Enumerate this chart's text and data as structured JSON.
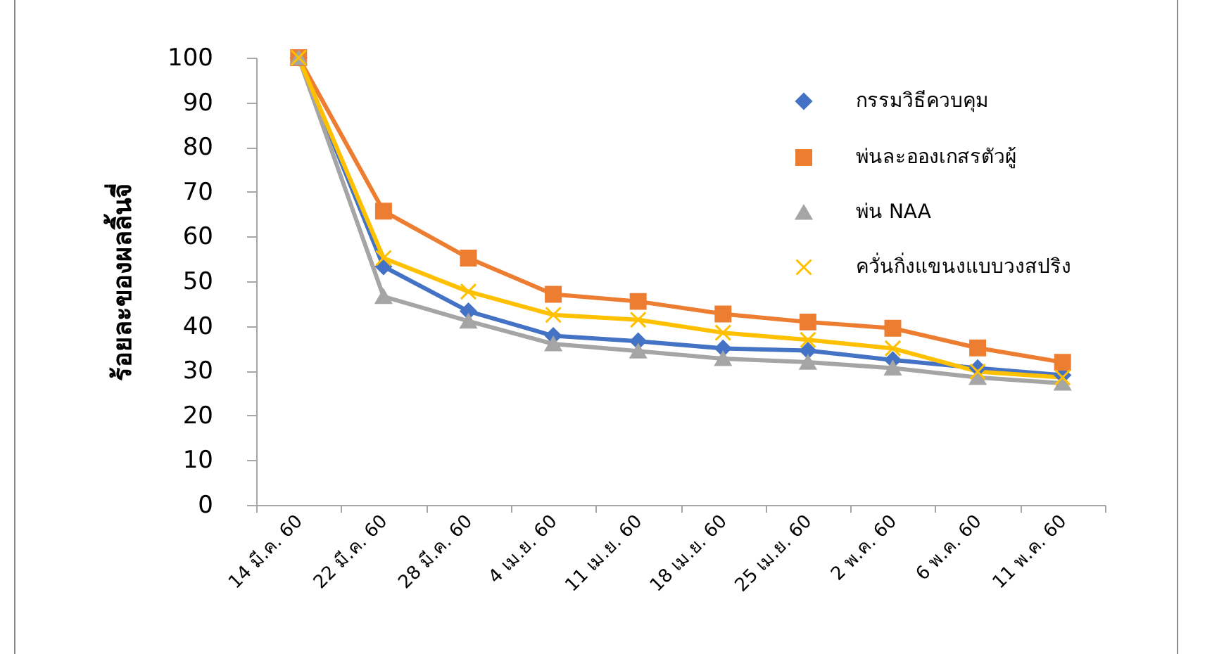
{
  "chart_data": {
    "type": "line",
    "ylabel": "ร้อยละของผลลิ้นจี่",
    "categories": [
      "14 มี.ค. 60",
      "22 มี.ค. 60",
      "28 มี.ค. 60",
      "4 เม.ย. 60",
      "11 เม.ย. 60",
      "18 เม.ย. 60",
      "25 เม.ย. 60",
      "2 พ.ค. 60",
      "6 พ.ค. 60",
      "11 พ.ค. 60"
    ],
    "series": [
      {
        "name": "กรรมวิธีควบคุม",
        "color": "#4472c4",
        "marker": "diamond",
        "values": [
          100,
          53.3,
          43.3,
          37.8,
          36.6,
          35.0,
          34.5,
          32.4,
          30.6,
          29.0
        ]
      },
      {
        "name": "พ่นละอองเกสรตัวผู้",
        "color": "#ed7d31",
        "marker": "square",
        "values": [
          100,
          65.7,
          55.2,
          47.1,
          45.5,
          42.7,
          40.9,
          39.5,
          35.1,
          31.9
        ]
      },
      {
        "name": "พ่น NAA",
        "color": "#a5a5a5",
        "marker": "triangle",
        "values": [
          100,
          46.6,
          41.1,
          36.0,
          34.4,
          32.7,
          31.9,
          30.6,
          28.5,
          27.2
        ]
      },
      {
        "name": "ควั่นกิ่งแขนงแบบวงสปริง",
        "color": "#ffc000",
        "marker": "cross",
        "values": [
          100,
          55.2,
          47.7,
          42.5,
          41.4,
          38.5,
          36.9,
          35.0,
          29.8,
          28.5
        ]
      }
    ],
    "ylim": [
      0,
      100
    ],
    "yticks": [
      0,
      10,
      20,
      30,
      40,
      50,
      60,
      70,
      80,
      90,
      100
    ],
    "legend": "top right"
  }
}
